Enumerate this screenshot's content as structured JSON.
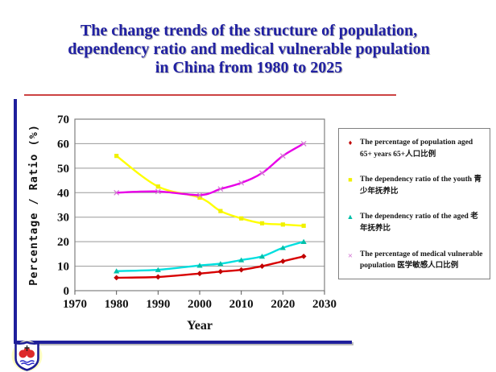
{
  "slide": {
    "title_lines": [
      "The change trends of the structure of population,",
      "dependency ratio and medical vulnerable population",
      "in China from 1980 to 2025"
    ],
    "title_color": "#2121A3",
    "separator_color": "#CC4343",
    "frame_color": "#1F1F9C"
  },
  "legend": {
    "items": [
      {
        "marker": "diamond",
        "color": "#C00000",
        "label": "The percentage of population aged 65+ years 65+人口比例"
      },
      {
        "marker": "square",
        "color": "#F0F000",
        "label": "The dependency ratio of the youth 青少年抚养比"
      },
      {
        "marker": "triangle",
        "color": "#00BFA8",
        "label": "The dependency ratio of the aged 老年抚养比"
      },
      {
        "marker": "cross",
        "color": "#D478D4",
        "label": "The percentage of medical vulnerable population 医学敏感人口比例"
      }
    ]
  },
  "chart_data": {
    "type": "line",
    "x": [
      1980,
      1990,
      2000,
      2005,
      2010,
      2015,
      2020,
      2025
    ],
    "series": [
      {
        "name": "The percentage of population aged 65+ years 65+人口比例",
        "color": "#D80000",
        "marker": "diamond",
        "marker_color": "#C00000",
        "values": [
          5.3,
          5.6,
          7.0,
          7.8,
          8.5,
          10.0,
          12.0,
          14.0
        ]
      },
      {
        "name": "The dependency ratio of the youth 青少年抚养比",
        "color": "#FFFF00",
        "marker": "square",
        "marker_color": "#F0F000",
        "values": [
          55.0,
          42.5,
          38.0,
          32.5,
          29.5,
          27.5,
          27.0,
          26.5
        ]
      },
      {
        "name": "The dependency ratio of the aged 老年抚养比",
        "color": "#00DFDF",
        "marker": "triangle",
        "marker_color": "#00BFA8",
        "values": [
          8.0,
          8.5,
          10.3,
          11.0,
          12.5,
          14.0,
          17.5,
          20.0
        ]
      },
      {
        "name": "The percentage of medical vulnerable population 医学敏感人口比例",
        "color": "#E800E8",
        "marker": "cross",
        "marker_color": "#D478D4",
        "values": [
          40.0,
          40.5,
          39.0,
          41.5,
          44.0,
          48.0,
          55.0,
          60.0
        ]
      }
    ],
    "xlabel": "Year",
    "ylabel": "Percentage / Ratio (%)",
    "xticks": [
      1970,
      1980,
      1990,
      2000,
      2010,
      2020,
      2030
    ],
    "yticks": [
      0,
      10,
      20,
      30,
      40,
      50,
      60,
      70
    ],
    "xlim": [
      1970,
      2030
    ],
    "ylim": [
      0,
      70
    ],
    "grid": "horizontal",
    "legend_position": "right",
    "trendline_smoothing": true
  }
}
